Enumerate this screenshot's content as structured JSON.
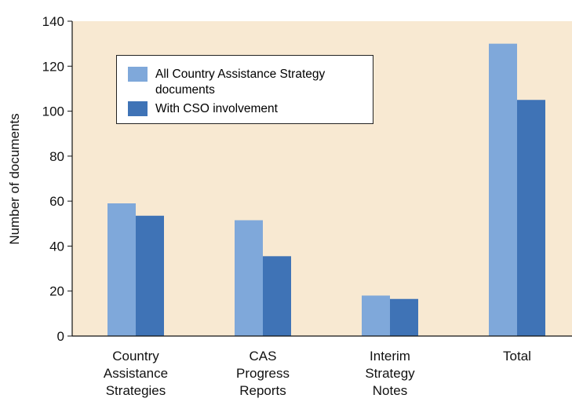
{
  "chart_data": {
    "type": "bar",
    "ylabel": "Number of documents",
    "categories": [
      [
        "Country",
        "Assistance",
        "Strategies"
      ],
      [
        "CAS",
        "Progress",
        "Reports"
      ],
      [
        "Interim",
        "Strategy",
        "Notes"
      ],
      [
        "Total"
      ]
    ],
    "series": [
      {
        "name": "All Country Assistance Strategy documents",
        "color": "#7fa8da",
        "values": [
          59,
          51.5,
          18,
          130
        ]
      },
      {
        "name": "With CSO involvement",
        "color": "#3f73b6",
        "values": [
          53.5,
          35.5,
          16.5,
          105
        ]
      }
    ],
    "ylim": [
      0,
      140
    ],
    "yticks": [
      0,
      20,
      40,
      60,
      80,
      100,
      120,
      140
    ],
    "background": "#f8e9d2"
  }
}
